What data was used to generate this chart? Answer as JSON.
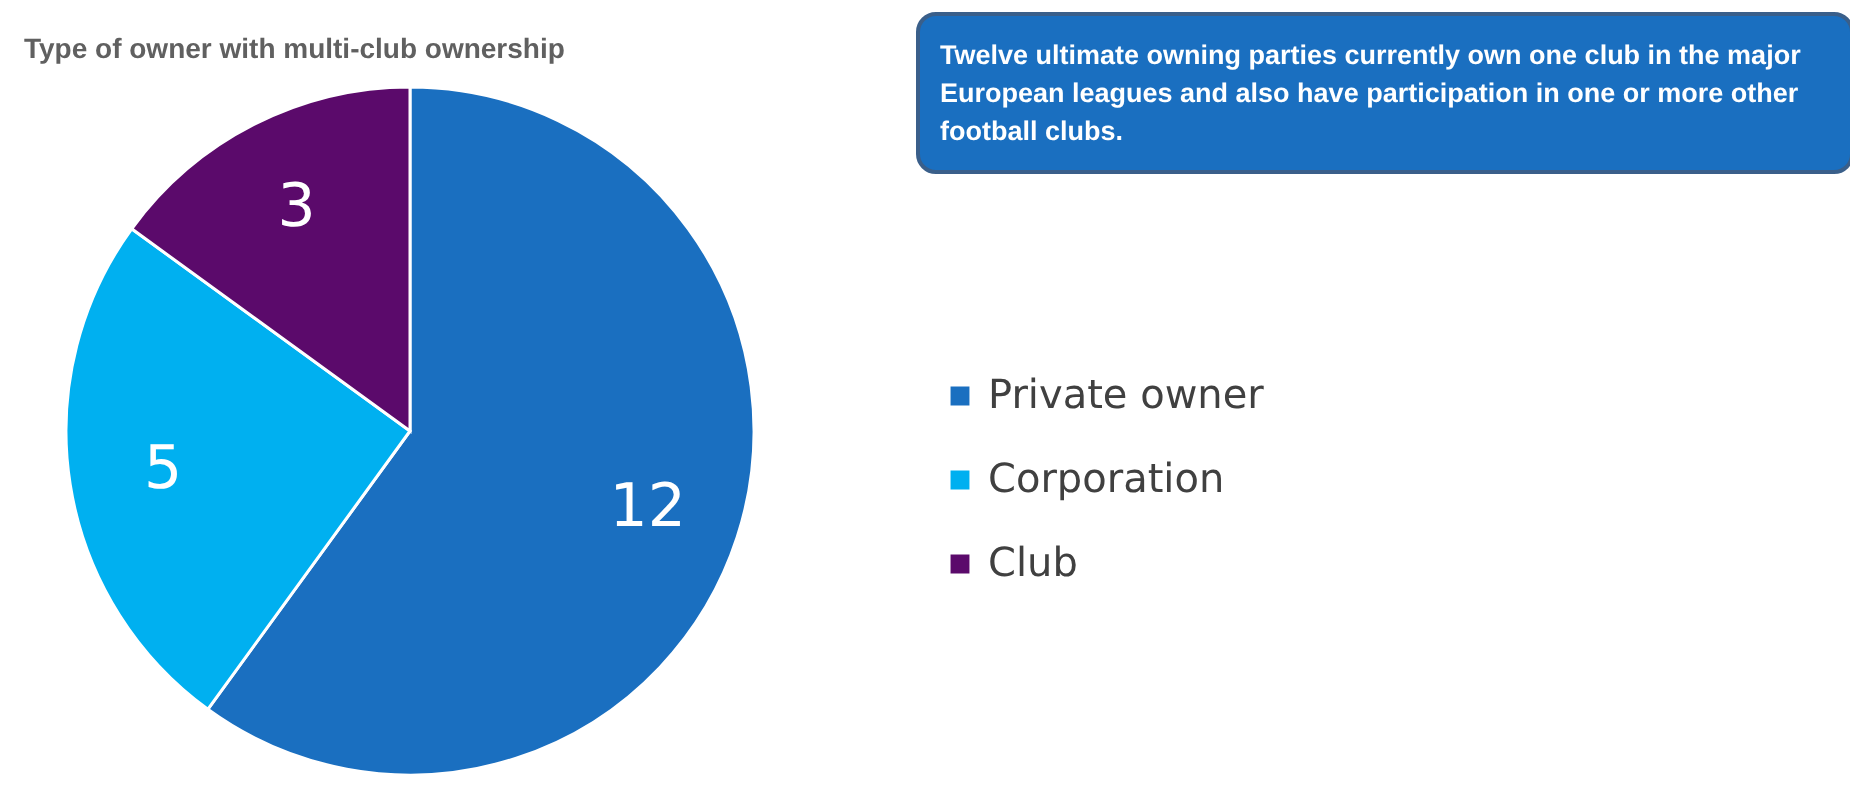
{
  "chart_data": {
    "type": "pie",
    "title": "Type of owner with multi-club ownership",
    "categories": [
      "Private owner",
      "Corporation",
      "Club"
    ],
    "values": [
      12,
      5,
      3
    ],
    "colors": [
      "#1a6fc0",
      "#00b0f0",
      "#5b0a6b"
    ],
    "data_labels": true,
    "legend": "right",
    "annotations": [
      "Twelve ultimate owning parties currently own one club in the major European leagues and also have participation in one or more other football clubs."
    ]
  }
}
